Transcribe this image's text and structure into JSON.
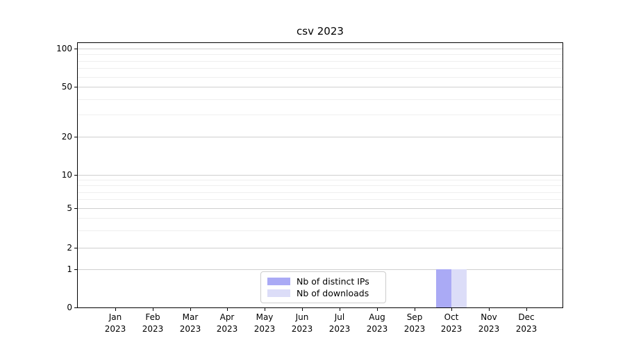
{
  "title": "csv 2023",
  "chart_data": {
    "type": "bar",
    "title": "csv 2023",
    "categories": [
      "Jan 2023",
      "Feb 2023",
      "Mar 2023",
      "Apr 2023",
      "May 2023",
      "Jun 2023",
      "Jul 2023",
      "Aug 2023",
      "Sep 2023",
      "Oct 2023",
      "Nov 2023",
      "Dec 2023"
    ],
    "series": [
      {
        "name": "Nb of distinct IPs",
        "color": "#aaaaf5",
        "values": [
          0,
          0,
          0,
          0,
          0,
          0,
          0,
          0,
          0,
          1,
          0,
          0
        ]
      },
      {
        "name": "Nb of downloads",
        "color": "#dcddf8",
        "values": [
          0,
          0,
          0,
          0,
          0,
          0,
          0,
          0,
          0,
          1,
          0,
          0
        ]
      }
    ],
    "yticks": [
      0,
      1,
      2,
      5,
      10,
      20,
      50,
      100
    ],
    "yscale": "symlog",
    "ylim": [
      0,
      110
    ],
    "xlabel": "",
    "ylabel": "",
    "grid": "horizontal",
    "legend_position": "inside-bottom-center"
  },
  "colors": {
    "background": "#ffffff",
    "axis": "#000000",
    "grid_major": "#cfcfcf",
    "grid_minor": "#efefef",
    "legend_border": "#cccccc",
    "text": "#000000"
  }
}
